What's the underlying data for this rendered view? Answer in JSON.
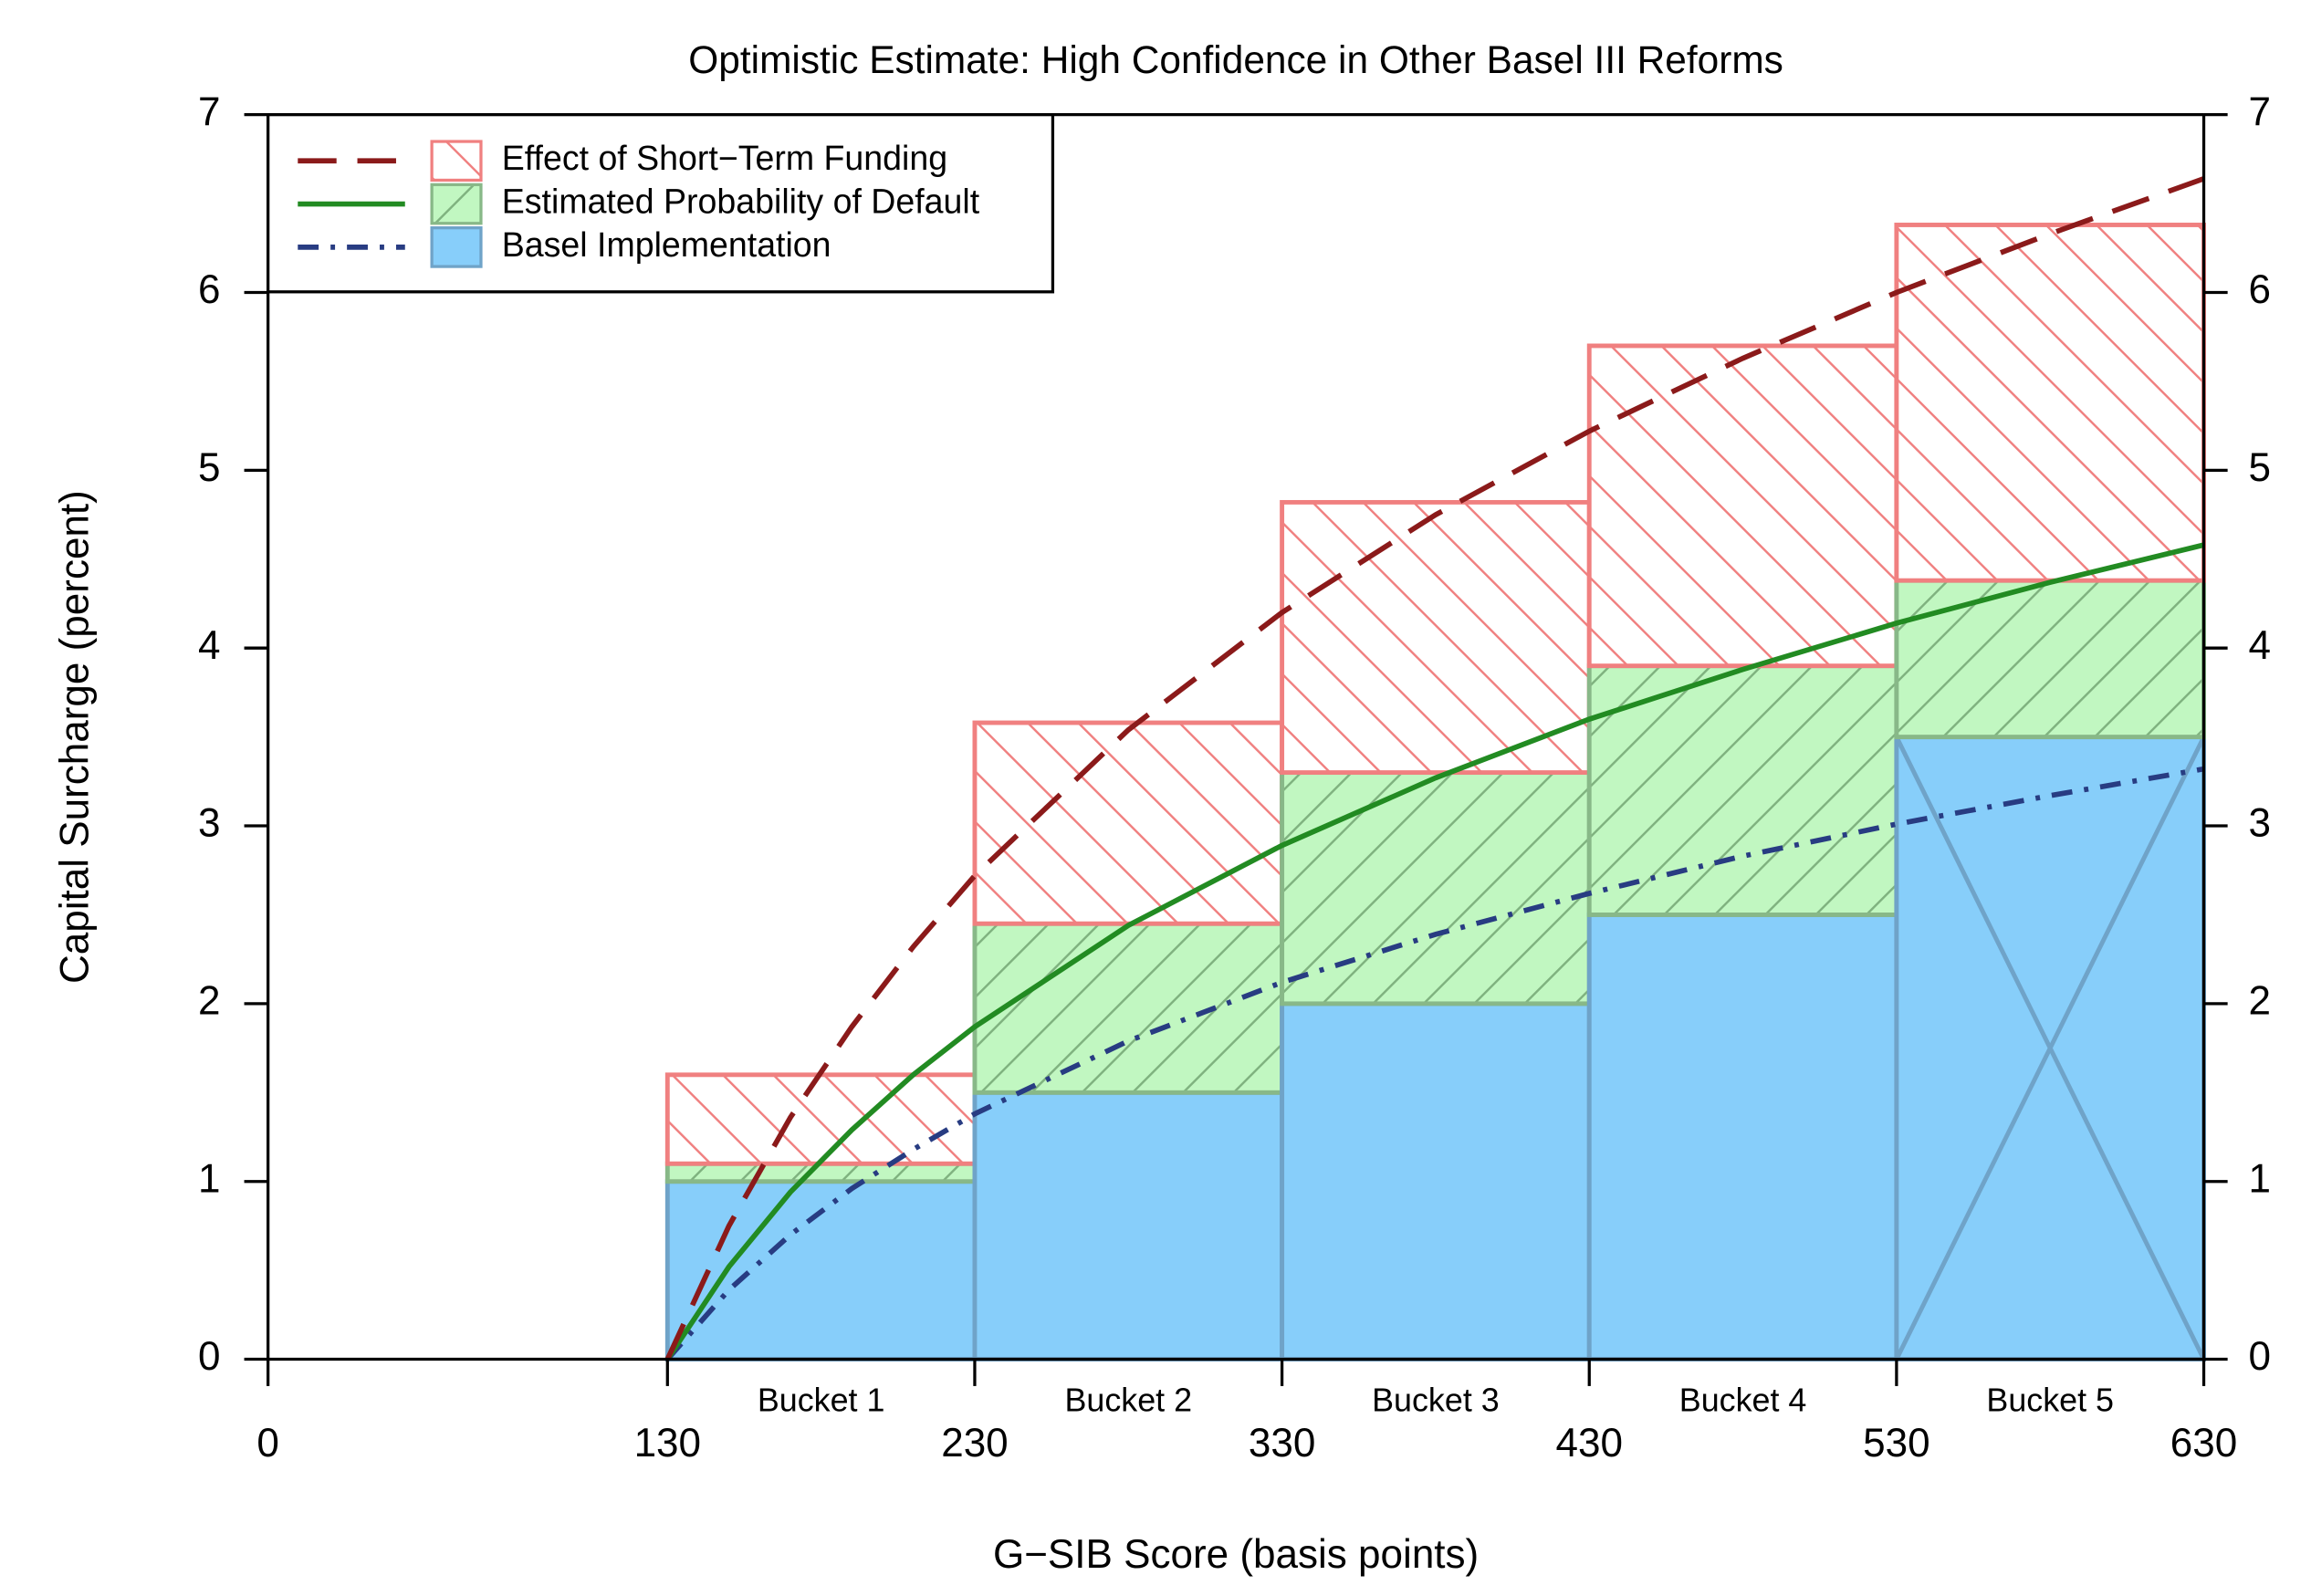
{
  "chart_data": {
    "type": "bar",
    "title": "Optimistic Estimate: High Confidence in Other Basel III Reforms",
    "xlabel": "G−SIB Score (basis points)",
    "ylabel": "Capital Surcharge (percent)",
    "xlim": [
      0,
      630
    ],
    "xticks": [
      0,
      130,
      230,
      330,
      430,
      530,
      630
    ],
    "ylim": [
      0,
      7
    ],
    "yticks": [
      0,
      1,
      2,
      3,
      4,
      5,
      6,
      7
    ],
    "y2lim": [
      0,
      7
    ],
    "y2ticks": [
      0,
      1,
      2,
      3,
      4,
      5,
      6,
      7
    ],
    "bins": [
      130,
      230,
      330,
      430,
      530,
      630
    ],
    "categories": [
      "Bucket 1",
      "Bucket 2",
      "Bucket 3",
      "Bucket 4",
      "Bucket 5"
    ],
    "stacked": true,
    "series": [
      {
        "name": "Basel Implementation",
        "color": "#87cefa",
        "values": [
          1,
          1.5,
          2,
          2.5,
          3.5
        ]
      },
      {
        "name": "Estimated Probability of Default",
        "color": "#c1f7c1",
        "values": [
          0.1,
          0.95,
          1.3,
          1.4,
          0.88
        ]
      },
      {
        "name": "Effect of Short−Term Funding",
        "color": "#f08080",
        "values": [
          0.5,
          1.13,
          1.52,
          1.8,
          2.0
        ]
      }
    ],
    "lines": {
      "x": [
        130,
        150,
        170,
        190,
        210,
        230,
        280,
        330,
        380,
        430,
        480,
        530,
        580,
        630
      ],
      "series": [
        {
          "color": "#283c82",
          "dash": "dashdot",
          "values": [
            0,
            0.39,
            0.7,
            0.96,
            1.18,
            1.38,
            1.79,
            2.12,
            2.39,
            2.62,
            2.83,
            3.01,
            3.17,
            3.32
          ]
        },
        {
          "color": "#228b22",
          "dash": "solid",
          "values": [
            0,
            0.52,
            0.94,
            1.29,
            1.6,
            1.87,
            2.44,
            2.89,
            3.27,
            3.6,
            3.88,
            4.14,
            4.37,
            4.58
          ]
        },
        {
          "color": "#8b1a1a",
          "dash": "dashed",
          "values": [
            0,
            0.75,
            1.36,
            1.87,
            2.32,
            2.72,
            3.54,
            4.2,
            4.75,
            5.22,
            5.63,
            6.0,
            6.33,
            6.64
          ]
        }
      ]
    }
  }
}
